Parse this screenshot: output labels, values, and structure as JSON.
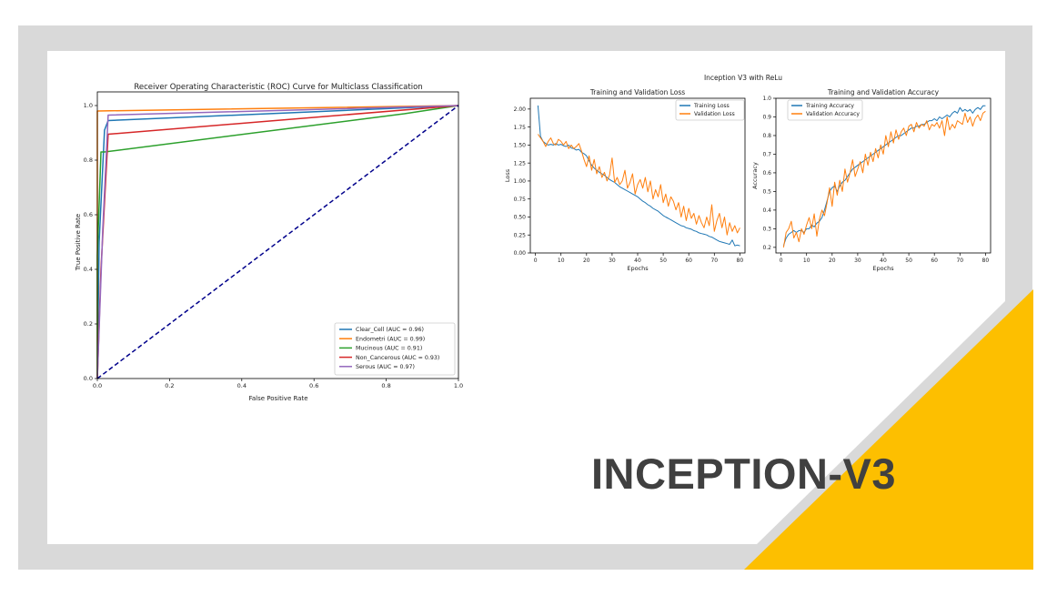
{
  "slide": {
    "title": "INCEPTION-V3",
    "colors": {
      "frame": "#d9d9d9",
      "panel": "#ffffff",
      "accent": "#fdbf00",
      "title": "#404040"
    }
  },
  "chart_data": [
    {
      "type": "line",
      "title": "Receiver Operating Characteristic (ROC) Curve for Multiclass Classification",
      "xlabel": "False Positive Rate",
      "ylabel": "True Positive Rate",
      "xlim": [
        0,
        1
      ],
      "ylim": [
        0,
        1.05
      ],
      "xticks": [
        "0.0",
        "0.2",
        "0.4",
        "0.6",
        "0.8",
        "1.0"
      ],
      "yticks": [
        "0.0",
        "0.2",
        "0.4",
        "0.6",
        "0.8",
        "1.0"
      ],
      "legend_position": "lower-right",
      "grid": false,
      "series": [
        {
          "name": "Clear_Cell (AUC = 0.96)",
          "color": "#1f77b4",
          "x": [
            0,
            0.005,
            0.02,
            0.03,
            1
          ],
          "y": [
            0,
            0.5,
            0.91,
            0.945,
            1
          ]
        },
        {
          "name": "Endometri (AUC = 0.99)",
          "color": "#ff7f0e",
          "x": [
            0,
            0.0,
            0.0,
            1
          ],
          "y": [
            0,
            0.6,
            0.98,
            1
          ]
        },
        {
          "name": "Mucinous (AUC = 0.91)",
          "color": "#2ca02c",
          "x": [
            0,
            0.0,
            0.01,
            0.02,
            0.85,
            1
          ],
          "y": [
            0,
            0.45,
            0.83,
            0.83,
            0.97,
            1
          ]
        },
        {
          "name": "Non_Cancerous (AUC = 0.93)",
          "color": "#d62728",
          "x": [
            0,
            0.01,
            0.03,
            1
          ],
          "y": [
            0,
            0.4,
            0.895,
            1
          ]
        },
        {
          "name": "Serous (AUC = 0.97)",
          "color": "#9467bd",
          "x": [
            0,
            0.015,
            0.03,
            1
          ],
          "y": [
            0,
            0.55,
            0.965,
            1
          ]
        },
        {
          "name": "",
          "color": "#00008b",
          "dashed": true,
          "x": [
            0,
            1
          ],
          "y": [
            0,
            1
          ]
        }
      ]
    },
    {
      "type": "line",
      "suptitle": "Inception V3 with ReLu",
      "title": "Training and Validation Loss",
      "xlabel": "Epochs",
      "ylabel": "Loss",
      "xlim": [
        -2,
        82
      ],
      "ylim": [
        0,
        2.15
      ],
      "xticks": [
        0,
        10,
        20,
        30,
        40,
        50,
        60,
        70,
        80
      ],
      "yticks": [
        "0.00",
        "0.25",
        "0.50",
        "0.75",
        "1.00",
        "1.25",
        "1.50",
        "1.75",
        "2.00"
      ],
      "legend_position": "top-right",
      "series": [
        {
          "name": "Training Loss",
          "color": "#1f77b4",
          "x": [
            1,
            2,
            3,
            4,
            5,
            6,
            7,
            8,
            9,
            10,
            11,
            12,
            13,
            14,
            15,
            16,
            17,
            18,
            19,
            20,
            21,
            22,
            23,
            24,
            25,
            26,
            27,
            28,
            29,
            30,
            31,
            32,
            33,
            34,
            35,
            36,
            37,
            38,
            39,
            40,
            41,
            42,
            43,
            44,
            45,
            46,
            47,
            48,
            49,
            50,
            51,
            52,
            53,
            54,
            55,
            56,
            57,
            58,
            59,
            60,
            61,
            62,
            63,
            64,
            65,
            66,
            67,
            68,
            69,
            70,
            71,
            72,
            73,
            74,
            75,
            76,
            77,
            78,
            79,
            80
          ],
          "y": [
            2.05,
            1.62,
            1.55,
            1.52,
            1.5,
            1.51,
            1.5,
            1.52,
            1.5,
            1.51,
            1.49,
            1.48,
            1.5,
            1.46,
            1.45,
            1.43,
            1.44,
            1.4,
            1.38,
            1.35,
            1.28,
            1.22,
            1.18,
            1.15,
            1.12,
            1.1,
            1.08,
            1.05,
            1.02,
            1.0,
            0.98,
            0.95,
            0.92,
            0.9,
            0.88,
            0.86,
            0.84,
            0.82,
            0.8,
            0.78,
            0.75,
            0.72,
            0.7,
            0.67,
            0.65,
            0.62,
            0.6,
            0.58,
            0.55,
            0.52,
            0.5,
            0.48,
            0.46,
            0.44,
            0.42,
            0.4,
            0.38,
            0.37,
            0.35,
            0.34,
            0.33,
            0.31,
            0.3,
            0.28,
            0.27,
            0.26,
            0.25,
            0.23,
            0.22,
            0.2,
            0.18,
            0.16,
            0.15,
            0.14,
            0.13,
            0.12,
            0.18,
            0.1,
            0.11,
            0.1
          ]
        },
        {
          "name": "Validation Loss",
          "color": "#ff7f0e",
          "x": [
            1,
            2,
            3,
            4,
            5,
            6,
            7,
            8,
            9,
            10,
            11,
            12,
            13,
            14,
            15,
            16,
            17,
            18,
            19,
            20,
            21,
            22,
            23,
            24,
            25,
            26,
            27,
            28,
            29,
            30,
            31,
            32,
            33,
            34,
            35,
            36,
            37,
            38,
            39,
            40,
            41,
            42,
            43,
            44,
            45,
            46,
            47,
            48,
            49,
            50,
            51,
            52,
            53,
            54,
            55,
            56,
            57,
            58,
            59,
            60,
            61,
            62,
            63,
            64,
            65,
            66,
            67,
            68,
            69,
            70,
            71,
            72,
            73,
            74,
            75,
            76,
            77,
            78,
            79,
            80
          ],
          "y": [
            1.65,
            1.6,
            1.55,
            1.48,
            1.55,
            1.6,
            1.52,
            1.5,
            1.58,
            1.55,
            1.5,
            1.55,
            1.45,
            1.5,
            1.45,
            1.48,
            1.52,
            1.42,
            1.3,
            1.2,
            1.35,
            1.15,
            1.3,
            1.1,
            1.2,
            1.05,
            1.12,
            1.0,
            1.08,
            1.32,
            0.98,
            1.05,
            0.95,
            1.0,
            1.15,
            0.9,
            0.98,
            1.1,
            0.82,
            0.95,
            1.02,
            0.9,
            1.05,
            0.85,
            1.0,
            0.75,
            0.88,
            0.78,
            0.95,
            0.7,
            0.82,
            0.65,
            0.78,
            0.72,
            0.6,
            0.7,
            0.5,
            0.65,
            0.45,
            0.62,
            0.48,
            0.55,
            0.4,
            0.52,
            0.42,
            0.35,
            0.5,
            0.38,
            0.67,
            0.3,
            0.45,
            0.55,
            0.35,
            0.5,
            0.25,
            0.42,
            0.3,
            0.38,
            0.28,
            0.35
          ]
        }
      ]
    },
    {
      "type": "line",
      "title": "Training and Validation Accuracy",
      "xlabel": "Epochs",
      "ylabel": "Accuracy",
      "xlim": [
        -2,
        82
      ],
      "ylim": [
        0.17,
        1.0
      ],
      "xticks": [
        0,
        10,
        20,
        30,
        40,
        50,
        60,
        70,
        80
      ],
      "yticks": [
        "0.2",
        "0.3",
        "0.4",
        "0.5",
        "0.6",
        "0.7",
        "0.8",
        "0.9",
        "1.0"
      ],
      "legend_position": "top-left",
      "series": [
        {
          "name": "Training Accuracy",
          "color": "#1f77b4",
          "x": [
            1,
            2,
            3,
            4,
            5,
            6,
            7,
            8,
            9,
            10,
            11,
            12,
            13,
            14,
            15,
            16,
            17,
            18,
            19,
            20,
            21,
            22,
            23,
            24,
            25,
            26,
            27,
            28,
            29,
            30,
            31,
            32,
            33,
            34,
            35,
            36,
            37,
            38,
            39,
            40,
            41,
            42,
            43,
            44,
            45,
            46,
            47,
            48,
            49,
            50,
            51,
            52,
            53,
            54,
            55,
            56,
            57,
            58,
            59,
            60,
            61,
            62,
            63,
            64,
            65,
            66,
            67,
            68,
            69,
            70,
            71,
            72,
            73,
            74,
            75,
            76,
            77,
            78,
            79,
            80
          ],
          "y": [
            0.21,
            0.25,
            0.27,
            0.28,
            0.29,
            0.28,
            0.29,
            0.29,
            0.28,
            0.3,
            0.3,
            0.32,
            0.31,
            0.33,
            0.34,
            0.36,
            0.4,
            0.45,
            0.5,
            0.52,
            0.53,
            0.5,
            0.53,
            0.55,
            0.56,
            0.58,
            0.6,
            0.62,
            0.63,
            0.64,
            0.65,
            0.66,
            0.67,
            0.68,
            0.69,
            0.7,
            0.71,
            0.72,
            0.73,
            0.74,
            0.75,
            0.76,
            0.77,
            0.78,
            0.79,
            0.8,
            0.8,
            0.81,
            0.82,
            0.83,
            0.84,
            0.84,
            0.85,
            0.85,
            0.86,
            0.86,
            0.87,
            0.88,
            0.88,
            0.89,
            0.88,
            0.9,
            0.89,
            0.9,
            0.91,
            0.9,
            0.92,
            0.93,
            0.92,
            0.95,
            0.93,
            0.94,
            0.93,
            0.94,
            0.92,
            0.94,
            0.95,
            0.94,
            0.96,
            0.96
          ]
        },
        {
          "name": "Validation Accuracy",
          "color": "#ff7f0e",
          "x": [
            1,
            2,
            3,
            4,
            5,
            6,
            7,
            8,
            9,
            10,
            11,
            12,
            13,
            14,
            15,
            16,
            17,
            18,
            19,
            20,
            21,
            22,
            23,
            24,
            25,
            26,
            27,
            28,
            29,
            30,
            31,
            32,
            33,
            34,
            35,
            36,
            37,
            38,
            39,
            40,
            41,
            42,
            43,
            44,
            45,
            46,
            47,
            48,
            49,
            50,
            51,
            52,
            53,
            54,
            55,
            56,
            57,
            58,
            59,
            60,
            61,
            62,
            63,
            64,
            65,
            66,
            67,
            68,
            69,
            70,
            71,
            72,
            73,
            74,
            75,
            76,
            77,
            78,
            79,
            80
          ],
          "y": [
            0.2,
            0.28,
            0.3,
            0.34,
            0.25,
            0.28,
            0.23,
            0.3,
            0.27,
            0.32,
            0.36,
            0.3,
            0.38,
            0.26,
            0.35,
            0.4,
            0.37,
            0.44,
            0.52,
            0.42,
            0.55,
            0.48,
            0.56,
            0.5,
            0.62,
            0.55,
            0.6,
            0.67,
            0.58,
            0.62,
            0.66,
            0.6,
            0.7,
            0.64,
            0.71,
            0.66,
            0.73,
            0.68,
            0.75,
            0.7,
            0.8,
            0.74,
            0.82,
            0.76,
            0.83,
            0.78,
            0.82,
            0.84,
            0.8,
            0.85,
            0.86,
            0.82,
            0.87,
            0.84,
            0.86,
            0.85,
            0.88,
            0.83,
            0.86,
            0.85,
            0.87,
            0.84,
            0.88,
            0.8,
            0.9,
            0.83,
            0.86,
            0.84,
            0.88,
            0.87,
            0.86,
            0.92,
            0.87,
            0.9,
            0.85,
            0.89,
            0.91,
            0.88,
            0.92,
            0.93
          ]
        }
      ]
    }
  ]
}
